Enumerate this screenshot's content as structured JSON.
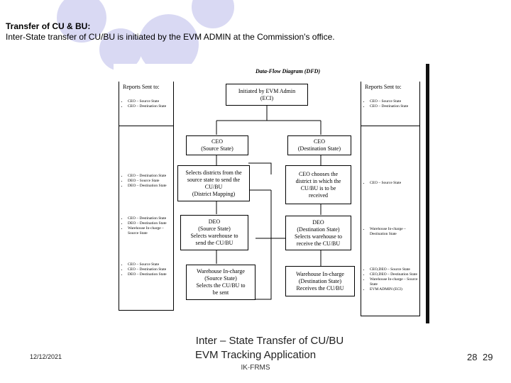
{
  "slide": {
    "title": "Transfer of CU & BU:",
    "subtitle": "Inter-State transfer of CU/BU is initiated by the EVM ADMIN at the Commission's office."
  },
  "diagram": {
    "title": "Data-Flow Diagram (DFD)",
    "initiated": [
      "Initiated by EVM Admin",
      "(ECI)"
    ],
    "ceo_source": [
      "CEO",
      "(Source State)"
    ],
    "ceo_dest": [
      "CEO",
      "(Destination State)"
    ],
    "select_districts": [
      "Selects districts from the",
      "source state to send the",
      "CU/BU",
      "(District Mapping)"
    ],
    "ceo_chooses": [
      "CEO chooses the",
      "district in which the",
      "CU/BU is to be",
      "received"
    ],
    "deo_source": [
      "DEO",
      "(Source State)",
      "Selects warehouse to",
      "send the CU/BU"
    ],
    "deo_dest": [
      "DEO",
      "(Destination State)",
      "Selects warehouse to",
      "receive the CU/BU"
    ],
    "wh_source": [
      "Warehouse In-charge",
      "(Source State)",
      "Selects the CU/BU to",
      "be sent"
    ],
    "wh_dest": [
      "Warehouse In-charge",
      "(Destination State)",
      "Receives the CU/BU"
    ],
    "left": {
      "head": "Reports Sent to:",
      "s1": [
        "CEO – Source State",
        "CEO – Destination State"
      ],
      "s2": [
        "CEO – Destination State",
        "DEO – Source State",
        "DEO – Destination State"
      ],
      "s3": [
        "CEO – Destination State",
        "DEO – Destination State",
        "Warehouse In-charge – Source State"
      ],
      "s4": [
        "CEO – Source State",
        "CEO – Destination State",
        "DEO – Destination State"
      ]
    },
    "right": {
      "head": "Reports Sent to:",
      "s1": [
        "CEO – Source State",
        "CEO – Destination State"
      ],
      "s2": [
        "CEO – Source State"
      ],
      "s3": [
        "Warehouse In-charge – Destination State"
      ],
      "s4": [
        "CEO,DEO – Source State",
        "CEO,DEO – Destination State",
        "Warehouse In-charge – Source State",
        "EVM ADMIN (ECI)"
      ]
    }
  },
  "footer": {
    "title": "Inter – State Transfer of CU/BU",
    "app": "EVM Tracking Application",
    "org": "IK-FRMS",
    "date": "12/12/2021",
    "page": "28",
    "page_overlay": "29"
  }
}
